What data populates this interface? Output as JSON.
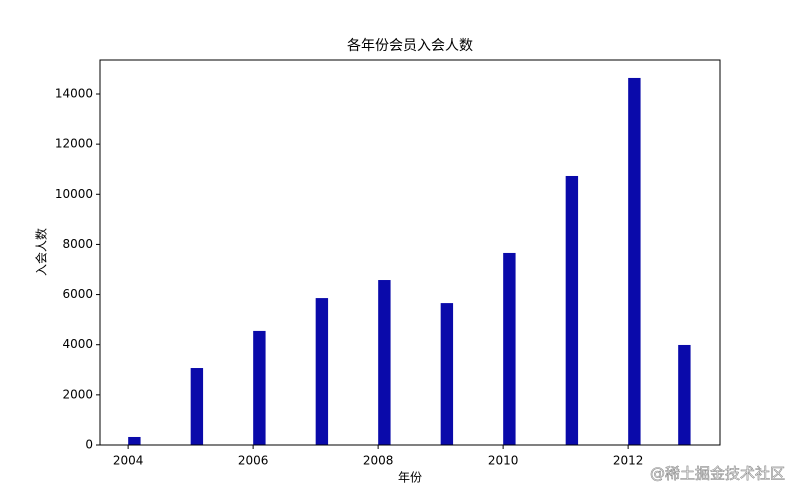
{
  "chart_data": {
    "type": "bar",
    "title": "各年份会员入会人数",
    "x_label": "年份",
    "y_label": "入会人数",
    "x": [
      2004.1,
      2005.1,
      2006.1,
      2007.1,
      2008.1,
      2009.1,
      2010.1,
      2011.1,
      2012.1,
      2012.9
    ],
    "values": [
      320,
      3070,
      4550,
      5860,
      6580,
      5660,
      7660,
      10730,
      14640,
      3990
    ],
    "color": "#0a0aaa",
    "xlim": [
      2003.55,
      2013.47
    ],
    "xticks": [
      2004,
      2006,
      2008,
      2010,
      2012
    ],
    "ylim": [
      0,
      15356
    ],
    "yticks": [
      0,
      2000,
      4000,
      6000,
      8000,
      10000,
      12000,
      14000
    ],
    "grid": false,
    "watermark": "@稀土掘金技术社区"
  }
}
